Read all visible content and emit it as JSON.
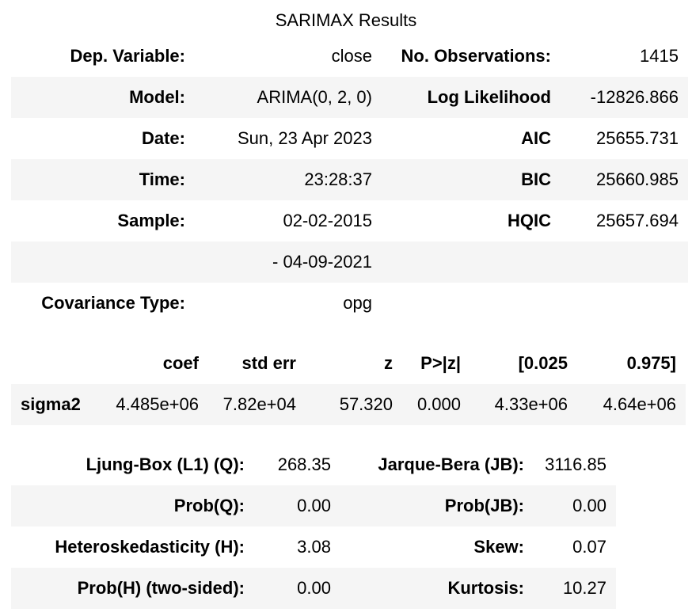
{
  "title": "SARIMAX Results",
  "summary": {
    "rows": [
      {
        "label1": "Dep. Variable:",
        "value1": "close",
        "label2": "No. Observations:",
        "value2": "1415"
      },
      {
        "label1": "Model:",
        "value1": "ARIMA(0, 2, 0)",
        "label2": "Log Likelihood",
        "value2": "-12826.866"
      },
      {
        "label1": "Date:",
        "value1": "Sun, 23 Apr 2023",
        "label2": "AIC",
        "value2": "25655.731"
      },
      {
        "label1": "Time:",
        "value1": "23:28:37",
        "label2": "BIC",
        "value2": "25660.985"
      },
      {
        "label1": "Sample:",
        "value1": "02-02-2015",
        "label2": "HQIC",
        "value2": "25657.694"
      },
      {
        "label1": "",
        "value1": "- 04-09-2021",
        "label2": "",
        "value2": ""
      },
      {
        "label1": "Covariance Type:",
        "value1": "opg",
        "label2": "",
        "value2": ""
      }
    ]
  },
  "params": {
    "headers": [
      "",
      "coef",
      "std err",
      "z",
      "P>|z|",
      "[0.025",
      "0.975]"
    ],
    "rows": [
      {
        "name": "sigma2",
        "values": [
          "4.485e+06",
          "7.82e+04",
          "57.320",
          "0.000",
          "4.33e+06",
          "4.64e+06"
        ]
      }
    ]
  },
  "diagnostics": {
    "rows": [
      {
        "label1": "Ljung-Box (L1) (Q):",
        "value1": "268.35",
        "label2": "Jarque-Bera (JB):",
        "value2": "3116.85"
      },
      {
        "label1": "Prob(Q):",
        "value1": "0.00",
        "label2": "Prob(JB):",
        "value2": "0.00"
      },
      {
        "label1": "Heteroskedasticity (H):",
        "value1": "3.08",
        "label2": "Skew:",
        "value2": "0.07"
      },
      {
        "label1": "Prob(H) (two-sided):",
        "value1": "0.00",
        "label2": "Kurtosis:",
        "value2": "10.27"
      }
    ]
  }
}
